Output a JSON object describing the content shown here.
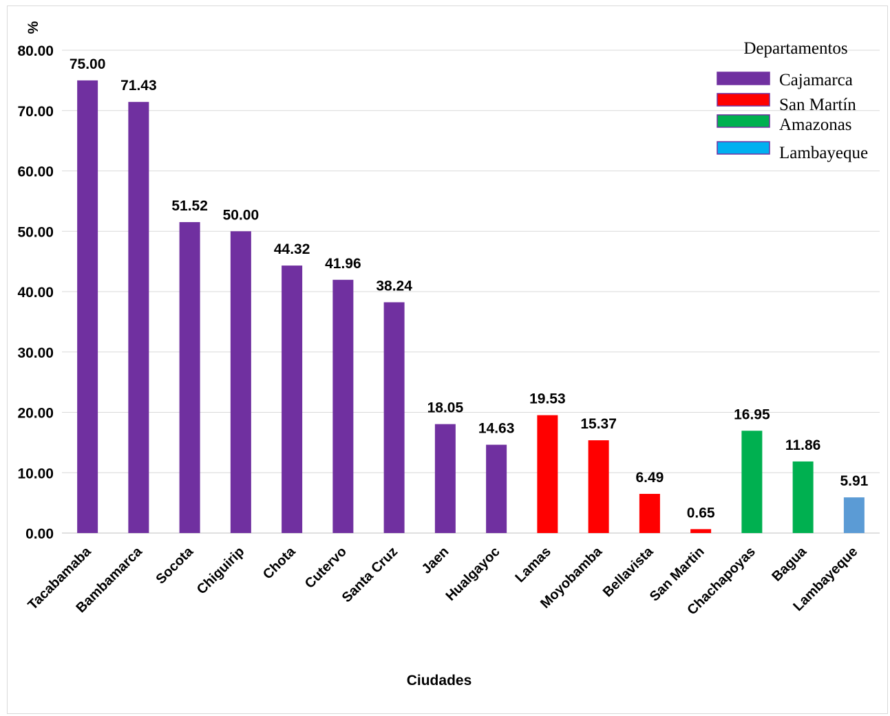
{
  "chart_data": {
    "type": "bar",
    "title": "",
    "xlabel": "Ciudades",
    "ylabel": "%",
    "ylim": [
      0,
      80
    ],
    "yticks": [
      "0.00",
      "10.00",
      "20.00",
      "30.00",
      "40.00",
      "50.00",
      "60.00",
      "70.00",
      "80.00"
    ],
    "grid": true,
    "legend_title": "Departamentos",
    "legend_position": "top-right",
    "legend": [
      {
        "name": "Cajamarca",
        "color": "#7030a0"
      },
      {
        "name": "San Martín",
        "color": "#ff0000"
      },
      {
        "name": "Amazonas",
        "color": "#00b050"
      },
      {
        "name": "Lambayeque",
        "color": "#00b0f0"
      }
    ],
    "categories": [
      "Tacabamaba",
      "Bambamarca",
      "Socota",
      "Chiguirip",
      "Chota",
      "Cutervo",
      "Santa Cruz",
      "Jaen",
      "Hualgayoc",
      "Lamas",
      "Moyobamba",
      "Bellavista",
      "San Martin",
      "Chachapoyas",
      "Bagua",
      "Lambayeque"
    ],
    "values": [
      75.0,
      71.43,
      51.52,
      50.0,
      44.32,
      41.96,
      38.24,
      18.05,
      14.63,
      19.53,
      15.37,
      6.49,
      0.65,
      16.95,
      11.86,
      5.91
    ],
    "value_labels": [
      "75.00",
      "71.43",
      "51.52",
      "50.00",
      "44.32",
      "41.96",
      "38.24",
      "18.05",
      "14.63",
      "19.53",
      "15.37",
      "6.49",
      "0.65",
      "16.95",
      "11.86",
      "5.91"
    ],
    "bar_colors": [
      "#7030a0",
      "#7030a0",
      "#7030a0",
      "#7030a0",
      "#7030a0",
      "#7030a0",
      "#7030a0",
      "#7030a0",
      "#7030a0",
      "#ff0000",
      "#ff0000",
      "#ff0000",
      "#ff0000",
      "#00b050",
      "#00b050",
      "#5b9bd5"
    ]
  }
}
